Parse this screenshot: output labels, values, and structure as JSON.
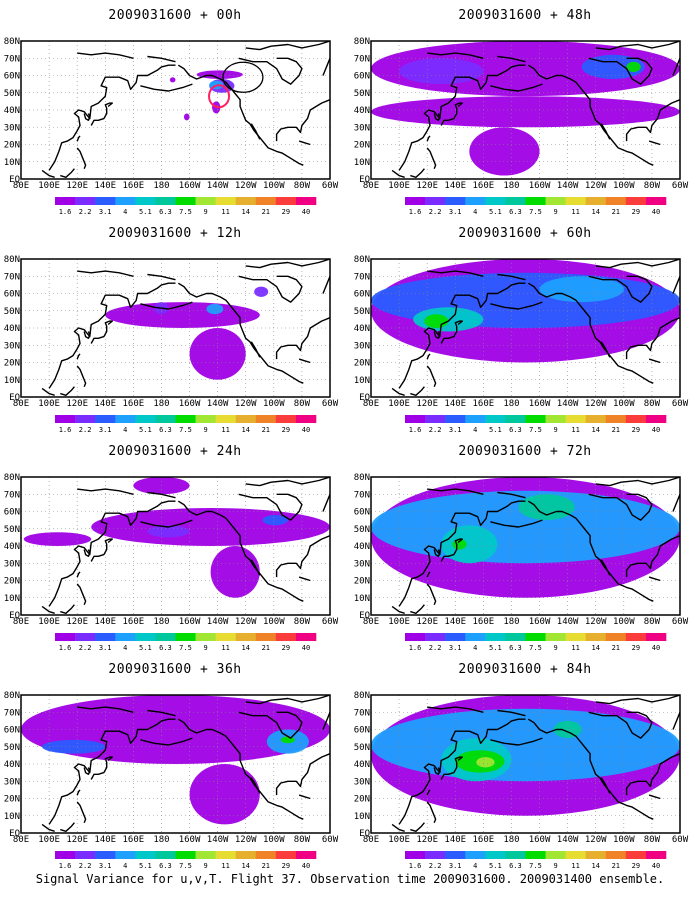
{
  "footer": "Signal Variance for u,v,T. Flight 37. Observation time 2009031600. 2009031400 ensemble.",
  "color_scale": {
    "labels": [
      "1.6",
      "2.2",
      "3.1",
      "4",
      "5.1",
      "6.3",
      "7.5",
      "9",
      "11",
      "14",
      "21",
      "29",
      "40"
    ],
    "colors": [
      "#a000e6",
      "#7a2cff",
      "#2a5cff",
      "#1ea0ff",
      "#00c8c8",
      "#00c89c",
      "#00dc00",
      "#a0e632",
      "#e6dc32",
      "#e6af2d",
      "#f08228",
      "#fa3c3c",
      "#f00082"
    ]
  },
  "axes": {
    "x_ticks": [
      "80E",
      "100E",
      "120E",
      "140E",
      "160E",
      "180",
      "160W",
      "140W",
      "120W",
      "100W",
      "80W",
      "60W"
    ],
    "y_ticks": [
      "EQ",
      "10N",
      "20N",
      "30N",
      "40N",
      "50N",
      "60N",
      "70N",
      "80N"
    ]
  },
  "chart_data": [
    {
      "type": "heatmap",
      "title": "2009031600 + 00h",
      "regions": [
        {
          "lon": [
            205,
            238
          ],
          "lat": [
            58,
            63
          ],
          "level": 0
        },
        {
          "lon": [
            214,
            232
          ],
          "lat": [
            50,
            58
          ],
          "level": 1
        },
        {
          "lon": [
            214,
            224
          ],
          "lat": [
            52,
            57
          ],
          "level": 3
        },
        {
          "lon": [
            216,
            222
          ],
          "lat": [
            38,
            45
          ],
          "level": 0
        },
        {
          "lon": [
            196,
            200
          ],
          "lat": [
            34,
            38
          ],
          "level": 0
        },
        {
          "lon": [
            186,
            190
          ],
          "lat": [
            56,
            59
          ],
          "level": 0
        }
      ],
      "annotations": [
        "red-circle",
        "black-circle"
      ]
    },
    {
      "type": "heatmap",
      "title": "2009031600 + 12h",
      "regions": [
        {
          "lon": [
            140,
            250
          ],
          "lat": [
            40,
            55
          ],
          "level": 0
        },
        {
          "lon": [
            200,
            240
          ],
          "lat": [
            10,
            40
          ],
          "level": 0
        },
        {
          "lon": [
            212,
            224
          ],
          "lat": [
            48,
            54
          ],
          "level": 3
        },
        {
          "lon": [
            246,
            256
          ],
          "lat": [
            58,
            64
          ],
          "level": 1
        },
        {
          "lon": [
            175,
            185
          ],
          "lat": [
            48,
            55
          ],
          "level": 1
        }
      ]
    },
    {
      "type": "heatmap",
      "title": "2009031600 + 24h",
      "regions": [
        {
          "lon": [
            82,
            130
          ],
          "lat": [
            40,
            48
          ],
          "level": 0
        },
        {
          "lon": [
            130,
            300
          ],
          "lat": [
            40,
            62
          ],
          "level": 0
        },
        {
          "lon": [
            215,
            250
          ],
          "lat": [
            10,
            40
          ],
          "level": 0
        },
        {
          "lon": [
            160,
            200
          ],
          "lat": [
            70,
            80
          ],
          "level": 0
        },
        {
          "lon": [
            252,
            270
          ],
          "lat": [
            52,
            58
          ],
          "level": 2
        },
        {
          "lon": [
            170,
            200
          ],
          "lat": [
            45,
            52
          ],
          "level": 1
        }
      ]
    },
    {
      "type": "heatmap",
      "title": "2009031600 + 36h",
      "regions": [
        {
          "lon": [
            80,
            300
          ],
          "lat": [
            40,
            80
          ],
          "level": 0
        },
        {
          "lon": [
            200,
            250
          ],
          "lat": [
            5,
            40
          ],
          "level": 0
        },
        {
          "lon": [
            95,
            140
          ],
          "lat": [
            46,
            54
          ],
          "level": 2
        },
        {
          "lon": [
            255,
            285
          ],
          "lat": [
            46,
            60
          ],
          "level": 3
        },
        {
          "lon": [
            265,
            275
          ],
          "lat": [
            52,
            56
          ],
          "level": 6
        }
      ]
    },
    {
      "type": "heatmap",
      "title": "2009031600 + 48h",
      "regions": [
        {
          "lon": [
            80,
            300
          ],
          "lat": [
            48,
            80
          ],
          "level": 0
        },
        {
          "lon": [
            80,
            300
          ],
          "lat": [
            30,
            48
          ],
          "level": 0
        },
        {
          "lon": [
            150,
            200
          ],
          "lat": [
            2,
            30
          ],
          "level": 0
        },
        {
          "lon": [
            100,
            160
          ],
          "lat": [
            55,
            70
          ],
          "level": 1
        },
        {
          "lon": [
            230,
            275
          ],
          "lat": [
            58,
            72
          ],
          "level": 2
        },
        {
          "lon": [
            262,
            272
          ],
          "lat": [
            62,
            68
          ],
          "level": 6
        }
      ]
    },
    {
      "type": "heatmap",
      "title": "2009031600 + 60h",
      "regions": [
        {
          "lon": [
            80,
            300
          ],
          "lat": [
            20,
            80
          ],
          "level": 0
        },
        {
          "lon": [
            80,
            300
          ],
          "lat": [
            40,
            72
          ],
          "level": 2
        },
        {
          "lon": [
            110,
            160
          ],
          "lat": [
            38,
            52
          ],
          "level": 4
        },
        {
          "lon": [
            118,
            135
          ],
          "lat": [
            40,
            48
          ],
          "level": 6
        },
        {
          "lon": [
            200,
            260
          ],
          "lat": [
            55,
            70
          ],
          "level": 3
        }
      ]
    },
    {
      "type": "heatmap",
      "title": "2009031600 + 72h",
      "regions": [
        {
          "lon": [
            80,
            300
          ],
          "lat": [
            10,
            80
          ],
          "level": 0
        },
        {
          "lon": [
            80,
            300
          ],
          "lat": [
            30,
            72
          ],
          "level": 3
        },
        {
          "lon": [
            130,
            170
          ],
          "lat": [
            30,
            52
          ],
          "level": 4
        },
        {
          "lon": [
            138,
            148
          ],
          "lat": [
            38,
            44
          ],
          "level": 6
        },
        {
          "lon": [
            185,
            225
          ],
          "lat": [
            55,
            70
          ],
          "level": 5
        }
      ]
    },
    {
      "type": "heatmap",
      "title": "2009031600 + 84h",
      "regions": [
        {
          "lon": [
            80,
            300
          ],
          "lat": [
            10,
            80
          ],
          "level": 0
        },
        {
          "lon": [
            80,
            300
          ],
          "lat": [
            30,
            72
          ],
          "level": 3
        },
        {
          "lon": [
            130,
            180
          ],
          "lat": [
            30,
            55
          ],
          "level": 4
        },
        {
          "lon": [
            140,
            175
          ],
          "lat": [
            35,
            48
          ],
          "level": 6
        },
        {
          "lon": [
            155,
            168
          ],
          "lat": [
            38,
            44
          ],
          "level": 7
        },
        {
          "lon": [
            210,
            230
          ],
          "lat": [
            55,
            65
          ],
          "level": 5
        }
      ]
    }
  ]
}
